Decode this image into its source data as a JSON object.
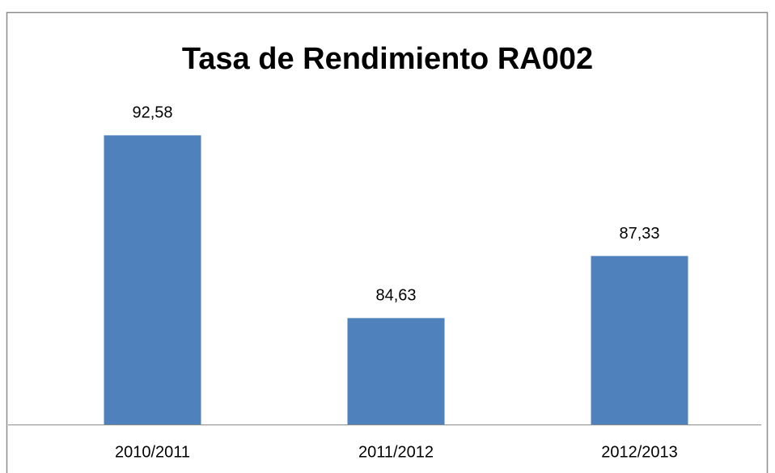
{
  "chart_data": {
    "type": "bar",
    "title": "Tasa de Rendimiento RA002",
    "categories": [
      "2010/2011",
      "2011/2012",
      "2012/2013"
    ],
    "values": [
      92.58,
      84.63,
      87.33
    ],
    "value_labels": [
      "92,58",
      "84,63",
      "87,33"
    ],
    "color": "#4f81bd",
    "ylim": [
      80,
      94
    ]
  }
}
